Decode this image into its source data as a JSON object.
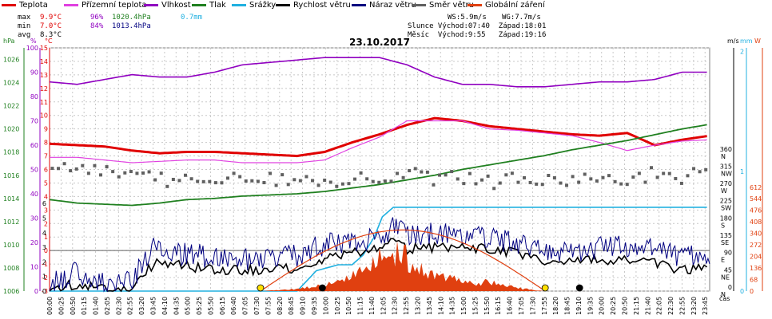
{
  "legend": [
    {
      "label": "Teplota",
      "color": "#e00000"
    },
    {
      "label": "Přízemní teplota",
      "color": "#e040e0"
    },
    {
      "label": "Vlhkost",
      "color": "#9000c0"
    },
    {
      "label": "Tlak",
      "color": "#208020"
    },
    {
      "label": "Srážky",
      "color": "#20b0e0"
    },
    {
      "label": "Rychlost větru",
      "color": "#000000"
    },
    {
      "label": "Náraz větru",
      "color": "#000080"
    },
    {
      "label": "Směr větru",
      "color": "#606060"
    },
    {
      "label": "Globální záření",
      "color": "#e04010"
    }
  ],
  "stats": {
    "max_label": "max",
    "max_temp": "9.9°C",
    "max_hum": "96%",
    "max_pres": "1020.4hPa",
    "max_rain": "0.7mm",
    "min_label": "min",
    "min_temp": "7.0°C",
    "min_hum": "84%",
    "min_pres": "1013.4hPa",
    "avg_label": "avg",
    "avg_temp": "8.3°C",
    "ws": "WS:5.9m/s",
    "wg": "WG:7.7m/s",
    "sun": "Slunce Východ:07:40  Západ:18:01",
    "moon": "Měsíc  Východ:9:55   Západ:19:16"
  },
  "chart_data": {
    "type": "line",
    "title": "23.10.2017",
    "x_unit_label": "čas",
    "axes": {
      "pressure": {
        "unit": "hPa",
        "ticks": [
          "1026",
          "1024",
          "1022",
          "1020",
          "1018",
          "1016",
          "1014",
          "1012",
          "1010",
          "1008",
          "1006"
        ],
        "range": [
          1006,
          1027
        ]
      },
      "humidity": {
        "unit": "%",
        "ticks": [
          "100",
          "90",
          "80",
          "70",
          "60",
          "50",
          "40",
          "30",
          "20",
          "10",
          "0"
        ],
        "range": [
          0,
          100
        ]
      },
      "temperature": {
        "unit": "°C",
        "ticks": [
          "15",
          "14",
          "13",
          "12",
          "11",
          "10",
          "9",
          "8",
          "7",
          "6",
          "5",
          "4",
          "3",
          "2",
          "1",
          "0",
          "-1",
          "-2",
          "-3"
        ],
        "range": [
          -3,
          15
        ]
      },
      "wind_dir": {
        "unit": "m/s",
        "ticks": [
          {
            "v": "360",
            "d": "N"
          },
          {
            "v": "315",
            "d": "NW"
          },
          {
            "v": "270",
            "d": "W"
          },
          {
            "v": "225",
            "d": "SW"
          },
          {
            "v": "180",
            "d": "S"
          },
          {
            "v": "135",
            "d": "SE"
          },
          {
            "v": "90",
            "d": "E"
          },
          {
            "v": "45",
            "d": "NE"
          },
          {
            "v": "0",
            "d": "N"
          }
        ]
      },
      "wind_speed": {
        "ticks": [
          "6",
          "5",
          "4",
          "3",
          "2",
          "1",
          "0"
        ]
      },
      "rain": {
        "unit": "mm",
        "ticks": [
          "2",
          "1",
          "0"
        ]
      },
      "radiation": {
        "unit": "W",
        "ticks": [
          "612",
          "544",
          "476",
          "408",
          "340",
          "272",
          "204",
          "136",
          "68",
          "0"
        ]
      }
    },
    "x_ticks": [
      "00:00",
      "00:25",
      "00:50",
      "01:15",
      "01:40",
      "02:05",
      "02:30",
      "02:55",
      "03:20",
      "03:45",
      "04:10",
      "04:35",
      "05:00",
      "05:25",
      "05:50",
      "06:15",
      "06:40",
      "07:05",
      "07:30",
      "07:55",
      "08:20",
      "08:45",
      "09:10",
      "09:35",
      "10:00",
      "10:25",
      "10:50",
      "11:15",
      "11:40",
      "12:05",
      "12:30",
      "12:55",
      "13:20",
      "13:45",
      "14:10",
      "14:35",
      "15:00",
      "15:25",
      "15:50",
      "16:15",
      "16:40",
      "17:05",
      "17:30",
      "17:55",
      "18:20",
      "18:45",
      "19:10",
      "19:35",
      "20:00",
      "20:25",
      "20:50",
      "21:15",
      "21:40",
      "22:05",
      "22:30",
      "22:55",
      "23:20",
      "23:45"
    ],
    "series": [
      {
        "name": "Teplota",
        "axis": "temperature",
        "hours": [
          0,
          1,
          2,
          3,
          4,
          5,
          6,
          7,
          8,
          9,
          10,
          11,
          12,
          13,
          14,
          15,
          16,
          17,
          18,
          19,
          20,
          21,
          22,
          23,
          24
        ],
        "values": [
          7.9,
          7.8,
          7.7,
          7.4,
          7.2,
          7.3,
          7.3,
          7.2,
          7.1,
          7.0,
          7.3,
          8.0,
          8.6,
          9.3,
          9.8,
          9.6,
          9.2,
          9.0,
          8.8,
          8.6,
          8.5,
          8.7,
          7.8,
          8.2,
          8.5
        ]
      },
      {
        "name": "Přízemní teplota",
        "axis": "temperature",
        "hours": [
          0,
          1,
          2,
          3,
          4,
          5,
          6,
          7,
          8,
          9,
          10,
          11,
          12,
          13,
          14,
          15,
          16,
          17,
          18,
          19,
          20,
          21,
          22,
          23,
          24
        ],
        "values": [
          6.9,
          6.9,
          6.7,
          6.5,
          6.6,
          6.7,
          6.7,
          6.5,
          6.5,
          6.5,
          6.7,
          7.6,
          8.4,
          9.6,
          9.6,
          9.6,
          9.0,
          8.9,
          8.7,
          8.5,
          8.0,
          7.4,
          7.8,
          8.1,
          8.2
        ]
      },
      {
        "name": "Vlhkost",
        "axis": "humidity",
        "hours": [
          0,
          1,
          2,
          3,
          4,
          5,
          6,
          7,
          8,
          9,
          10,
          11,
          12,
          13,
          14,
          15,
          16,
          17,
          18,
          19,
          20,
          21,
          22,
          23,
          24
        ],
        "values": [
          86,
          85,
          87,
          89,
          88,
          88,
          90,
          93,
          94,
          95,
          96,
          96,
          96,
          93,
          88,
          85,
          85,
          84,
          84,
          85,
          86,
          86,
          87,
          90,
          90
        ]
      },
      {
        "name": "Tlak",
        "axis": "pressure",
        "hours": [
          0,
          1,
          2,
          3,
          4,
          5,
          6,
          7,
          8,
          9,
          10,
          11,
          12,
          13,
          14,
          15,
          16,
          17,
          18,
          19,
          20,
          21,
          22,
          23,
          24
        ],
        "values": [
          1013.9,
          1013.6,
          1013.5,
          1013.4,
          1013.6,
          1013.9,
          1014.0,
          1014.2,
          1014.3,
          1014.4,
          1014.6,
          1014.9,
          1015.2,
          1015.6,
          1016.0,
          1016.5,
          1016.9,
          1017.3,
          1017.7,
          1018.2,
          1018.6,
          1019.0,
          1019.5,
          1020.0,
          1020.4
        ]
      },
      {
        "name": "Srážky",
        "axis": "rain",
        "hours": [
          0,
          9,
          9.7,
          10.5,
          11.0,
          11.4,
          11.8,
          12.1,
          12.5,
          13.0,
          24
        ],
        "values": [
          0,
          0,
          0.17,
          0.22,
          0.22,
          0.3,
          0.45,
          0.62,
          0.7,
          0.7,
          0.7
        ]
      },
      {
        "name": "Rychlost větru",
        "axis": "wind_speed",
        "hours": [
          0,
          1,
          2,
          3,
          3.5,
          4,
          4.5,
          5,
          6,
          7,
          8,
          9,
          10,
          11,
          12,
          12.5,
          13,
          14,
          15,
          16,
          17,
          18,
          19,
          20,
          21,
          22,
          23,
          24
        ],
        "values": [
          0.1,
          0.5,
          0.1,
          0.2,
          1.4,
          2.1,
          1.8,
          1.7,
          1.5,
          1.4,
          1.5,
          1.6,
          2.3,
          2.6,
          2.9,
          3.4,
          2.9,
          3.0,
          2.9,
          2.9,
          2.6,
          2.1,
          1.9,
          2.2,
          2.1,
          2.0,
          1.4,
          1.8
        ]
      },
      {
        "name": "Náraz větru",
        "axis": "wind_speed",
        "hours": [
          0,
          1,
          2,
          3,
          3.5,
          4,
          4.5,
          5,
          6,
          7,
          8,
          9,
          10,
          11,
          12,
          12.5,
          13,
          14,
          15,
          16,
          17,
          18,
          19,
          20,
          21,
          22,
          23,
          24
        ],
        "values": [
          0.5,
          1.3,
          0.4,
          0.7,
          2.3,
          3.3,
          2.5,
          2.6,
          2.2,
          2.1,
          2.2,
          2.4,
          3.2,
          3.4,
          3.6,
          4.5,
          3.9,
          4.0,
          3.9,
          3.6,
          3.3,
          2.8,
          2.6,
          3.0,
          3.0,
          2.8,
          2.3,
          2.4
        ]
      },
      {
        "name": "Směr větru",
        "axis": "wind_dir",
        "hours": [
          0,
          1,
          2,
          3,
          4,
          5,
          6,
          7,
          8,
          9,
          10,
          11,
          12,
          13,
          14,
          15,
          16,
          17,
          18,
          19,
          20,
          21,
          22,
          23,
          24
        ],
        "values": [
          305,
          330,
          320,
          300,
          290,
          285,
          300,
          285,
          290,
          285,
          280,
          290,
          300,
          310,
          290,
          300,
          280,
          290,
          285,
          290,
          280,
          290,
          305,
          300,
          300
        ]
      },
      {
        "name": "Globální záření",
        "axis": "radiation",
        "hours": [
          0,
          7.7,
          8.5,
          9,
          9.5,
          10,
          10.5,
          11,
          11.5,
          12,
          12.5,
          12.8,
          13.2,
          13.6,
          14,
          14.5,
          15,
          15.5,
          16,
          16.5,
          17,
          17.5,
          18,
          24
        ],
        "values": [
          0,
          0,
          8,
          12,
          22,
          35,
          60,
          95,
          120,
          180,
          210,
          230,
          150,
          110,
          90,
          70,
          60,
          55,
          50,
          30,
          20,
          8,
          0,
          0
        ]
      }
    ]
  }
}
